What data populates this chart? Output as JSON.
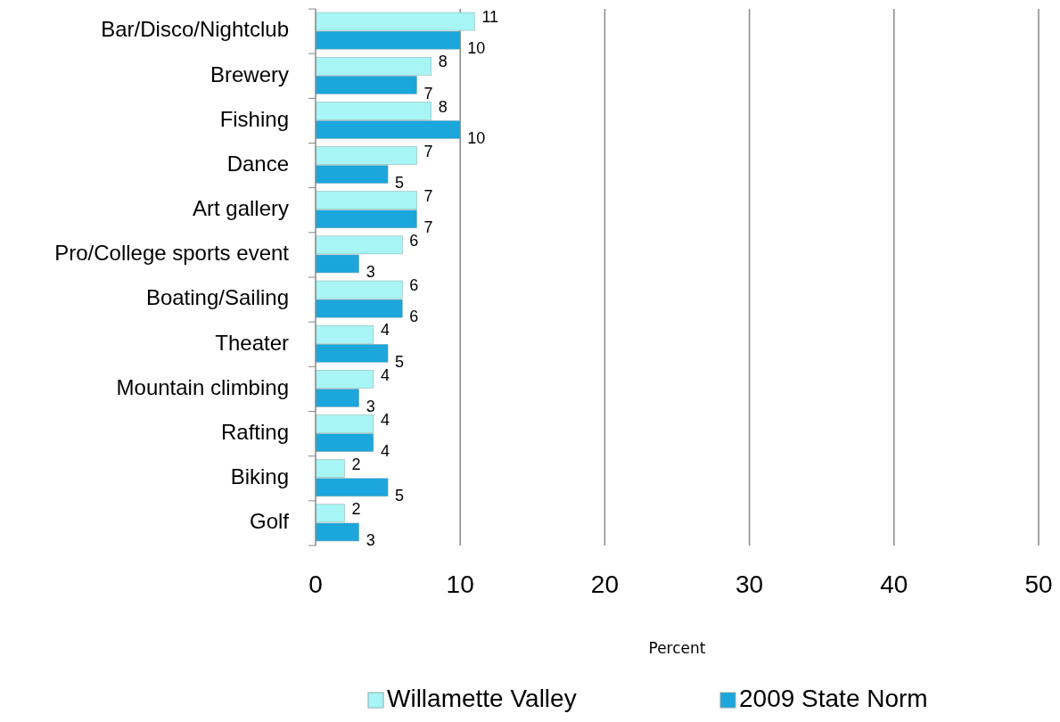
{
  "chart_data": {
    "type": "bar",
    "orientation": "horizontal",
    "categories": [
      "Bar/Disco/Nightclub",
      "Brewery",
      "Fishing",
      "Dance",
      "Art gallery",
      "Pro/College sports event",
      "Boating/Sailing",
      "Theater",
      "Mountain climbing",
      "Rafting",
      "Biking",
      "Golf"
    ],
    "series": [
      {
        "name": "Willamette Valley",
        "color": "#a8f5f5",
        "values": [
          11,
          8,
          8,
          7,
          7,
          6,
          6,
          4,
          4,
          4,
          2,
          2
        ]
      },
      {
        "name": "2009 State Norm",
        "color": "#1ba6dc",
        "values": [
          10,
          7,
          10,
          5,
          7,
          3,
          6,
          5,
          3,
          4,
          5,
          3
        ]
      }
    ],
    "xlim": [
      0,
      50
    ],
    "xticks": [
      0,
      10,
      20,
      30,
      40,
      50
    ],
    "xlabel": "Percent",
    "grid": "x",
    "legend": "bottom",
    "data_labels": true
  }
}
